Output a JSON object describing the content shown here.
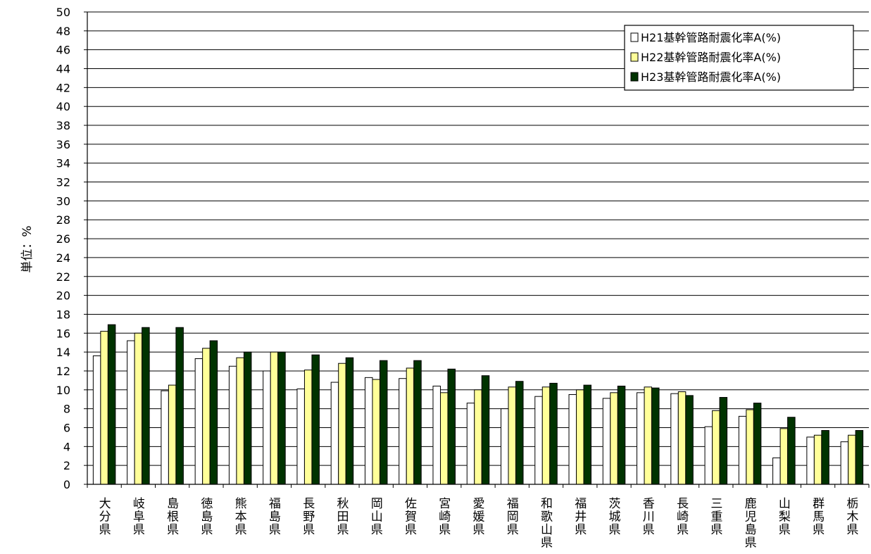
{
  "chart_data": {
    "type": "bar",
    "ylabel": "単位：%",
    "ylim": [
      0,
      50
    ],
    "ytick_step": 2,
    "grid": true,
    "legend_position": "top-right",
    "categories": [
      "大分県",
      "岐阜県",
      "島根県",
      "徳島県",
      "熊本県",
      "福島県",
      "長野県",
      "秋田県",
      "岡山県",
      "佐賀県",
      "宮崎県",
      "愛媛県",
      "福岡県",
      "和歌山県",
      "福井県",
      "茨城県",
      "香川県",
      "長崎県",
      "三重県",
      "鹿児島県",
      "山梨県",
      "群馬県",
      "栃木県"
    ],
    "series": [
      {
        "name": "H21基幹管路耐震化率A(%)",
        "color": "#ffffff",
        "values": [
          13.6,
          15.2,
          9.9,
          13.3,
          12.5,
          12.0,
          10.1,
          10.8,
          11.3,
          11.2,
          10.4,
          8.6,
          8.0,
          9.3,
          9.5,
          9.1,
          9.7,
          9.6,
          6.1,
          7.2,
          2.8,
          5.0,
          4.5
        ]
      },
      {
        "name": "H22基幹管路耐震化率A(%)",
        "color": "#ffff99",
        "values": [
          16.2,
          16.0,
          10.5,
          14.4,
          13.4,
          14.0,
          12.1,
          12.8,
          11.1,
          12.3,
          9.7,
          10.0,
          10.3,
          10.3,
          10.0,
          9.7,
          10.3,
          9.8,
          7.8,
          7.9,
          5.9,
          5.2,
          5.2
        ]
      },
      {
        "name": "H23基幹管路耐震化率A(%)",
        "color": "#003300",
        "values": [
          16.9,
          16.6,
          16.6,
          15.2,
          14.0,
          14.0,
          13.7,
          13.4,
          13.1,
          13.1,
          12.2,
          11.5,
          10.9,
          10.7,
          10.5,
          10.4,
          10.2,
          9.4,
          9.2,
          8.6,
          7.1,
          5.7,
          5.7
        ]
      }
    ]
  }
}
